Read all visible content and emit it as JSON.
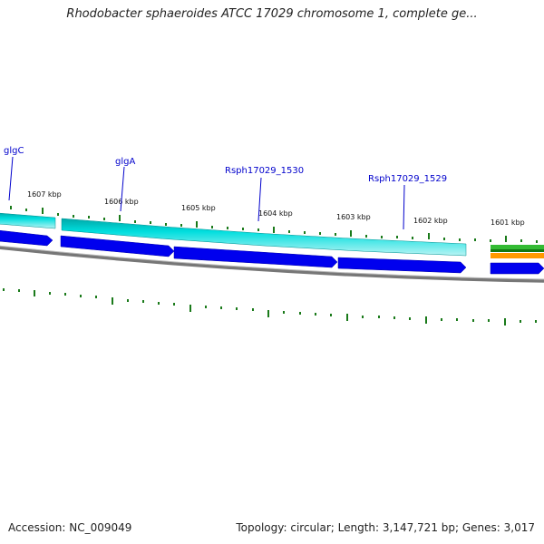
{
  "title": "Rhodobacter sphaeroides ATCC 17029 chromosome 1, complete ge...",
  "footer": {
    "accession": "Accession: NC_009049",
    "stats": "Topology: circular; Length: 3,147,721 bp; Genes: 3,017"
  },
  "tick_labels": [
    "1607 kbp",
    "1606 kbp",
    "1605 kbp",
    "1604 kbp",
    "1603 kbp",
    "1602 kbp",
    "1601 kbp"
  ],
  "gene_labels": [
    "glgC",
    "glgA",
    "Rsph17029_1530",
    "Rsph17029_1529"
  ],
  "colors": {
    "gene_label": "#0000cc",
    "tick": "#1a7a1a",
    "cds_track": "#00d0d0",
    "cds_track_edge": "#009090",
    "gene_arrow": "#0000ee",
    "backbone": "#888888",
    "rrna_green": "#33bb33",
    "rrna_orange": "#ff9900"
  }
}
